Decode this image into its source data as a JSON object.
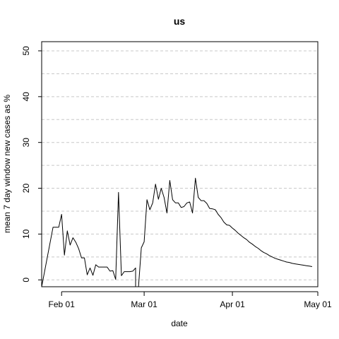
{
  "chart_data": {
    "type": "line",
    "title": "us",
    "xlabel": "date",
    "ylabel": "mean  7  day window new cases as %",
    "x_ticks": [
      "Feb 01",
      "Mar 01",
      "Apr 01",
      "May 01"
    ],
    "y_ticks": [
      0,
      10,
      20,
      30,
      40,
      50
    ],
    "xlim": [
      "2020-01-25",
      "2020-05-01"
    ],
    "ylim": [
      -1.5,
      52
    ],
    "grid": "horizontal dashed",
    "legend": "none",
    "series": [
      {
        "color": "#000000",
        "points": [
          [
            "2020-01-25",
            52.0
          ],
          [
            "2020-01-25",
            -2.0
          ],
          [
            "2020-01-29",
            11.5
          ],
          [
            "2020-01-30",
            11.5
          ],
          [
            "2020-01-31",
            11.5
          ],
          [
            "2020-02-01",
            14.3
          ],
          [
            "2020-02-02",
            5.4
          ],
          [
            "2020-02-03",
            10.7
          ],
          [
            "2020-02-04",
            7.6
          ],
          [
            "2020-02-05",
            9.2
          ],
          [
            "2020-02-06",
            8.2
          ],
          [
            "2020-02-07",
            6.8
          ],
          [
            "2020-02-08",
            4.8
          ],
          [
            "2020-02-09",
            4.8
          ],
          [
            "2020-02-10",
            1.1
          ],
          [
            "2020-02-11",
            2.6
          ],
          [
            "2020-02-12",
            1.0
          ],
          [
            "2020-02-13",
            3.3
          ],
          [
            "2020-02-14",
            2.8
          ],
          [
            "2020-02-15",
            2.8
          ],
          [
            "2020-02-16",
            2.8
          ],
          [
            "2020-02-17",
            2.8
          ],
          [
            "2020-02-18",
            1.9
          ],
          [
            "2020-02-19",
            2.0
          ],
          [
            "2020-02-20",
            0.1
          ],
          [
            "2020-02-21",
            19.1
          ],
          [
            "2020-02-22",
            0.9
          ],
          [
            "2020-02-23",
            1.8
          ],
          [
            "2020-02-24",
            1.8
          ],
          [
            "2020-02-25",
            1.8
          ],
          [
            "2020-02-26",
            1.9
          ],
          [
            "2020-02-27",
            2.6
          ],
          [
            "2020-02-27",
            -2.0
          ],
          [
            "2020-02-28",
            -2.0
          ],
          [
            "2020-02-29",
            7.0
          ],
          [
            "2020-03-01",
            8.3
          ],
          [
            "2020-03-02",
            17.5
          ],
          [
            "2020-03-03",
            15.3
          ],
          [
            "2020-03-04",
            16.8
          ],
          [
            "2020-03-05",
            20.9
          ],
          [
            "2020-03-06",
            17.6
          ],
          [
            "2020-03-07",
            20.0
          ],
          [
            "2020-03-08",
            18.0
          ],
          [
            "2020-03-09",
            14.6
          ],
          [
            "2020-03-10",
            21.7
          ],
          [
            "2020-03-11",
            17.5
          ],
          [
            "2020-03-12",
            16.8
          ],
          [
            "2020-03-13",
            16.8
          ],
          [
            "2020-03-14",
            15.8
          ],
          [
            "2020-03-15",
            16.0
          ],
          [
            "2020-03-16",
            16.8
          ],
          [
            "2020-03-17",
            17.0
          ],
          [
            "2020-03-18",
            14.6
          ],
          [
            "2020-03-19",
            22.2
          ],
          [
            "2020-03-20",
            18.0
          ],
          [
            "2020-03-21",
            17.3
          ],
          [
            "2020-03-22",
            17.3
          ],
          [
            "2020-03-23",
            16.7
          ],
          [
            "2020-03-24",
            15.6
          ],
          [
            "2020-03-25",
            15.5
          ],
          [
            "2020-03-26",
            15.3
          ],
          [
            "2020-03-27",
            14.3
          ],
          [
            "2020-03-28",
            13.6
          ],
          [
            "2020-03-29",
            12.6
          ],
          [
            "2020-03-30",
            12.0
          ],
          [
            "2020-03-31",
            11.9
          ],
          [
            "2020-04-01",
            11.3
          ],
          [
            "2020-04-02",
            10.8
          ],
          [
            "2020-04-03",
            10.2
          ],
          [
            "2020-04-04",
            9.7
          ],
          [
            "2020-04-05",
            9.2
          ],
          [
            "2020-04-06",
            8.8
          ],
          [
            "2020-04-07",
            8.2
          ],
          [
            "2020-04-08",
            7.8
          ],
          [
            "2020-04-09",
            7.3
          ],
          [
            "2020-04-10",
            6.9
          ],
          [
            "2020-04-11",
            6.4
          ],
          [
            "2020-04-12",
            6.0
          ],
          [
            "2020-04-13",
            5.7
          ],
          [
            "2020-04-14",
            5.3
          ],
          [
            "2020-04-15",
            5.0
          ],
          [
            "2020-04-16",
            4.7
          ],
          [
            "2020-04-17",
            4.5
          ],
          [
            "2020-04-18",
            4.3
          ],
          [
            "2020-04-19",
            4.1
          ],
          [
            "2020-04-20",
            3.9
          ],
          [
            "2020-04-21",
            3.8
          ],
          [
            "2020-04-22",
            3.6
          ],
          [
            "2020-04-23",
            3.5
          ],
          [
            "2020-04-24",
            3.4
          ],
          [
            "2020-04-25",
            3.3
          ],
          [
            "2020-04-26",
            3.2
          ],
          [
            "2020-04-27",
            3.1
          ],
          [
            "2020-04-28",
            3.0
          ],
          [
            "2020-04-29",
            2.9
          ]
        ]
      }
    ]
  }
}
